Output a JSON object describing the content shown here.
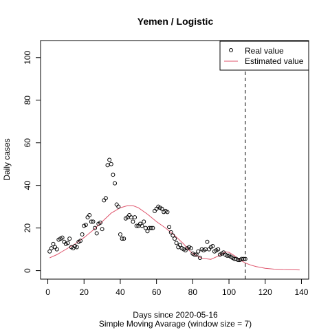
{
  "chart_data": {
    "type": "line",
    "title": "Yemen / Logistic",
    "xlabel": "Days since 2020-05-16",
    "sublabel": "Simple Moving Avarage (window size = 7)",
    "ylabel": "Daily cases",
    "xlim": [
      -4,
      144
    ],
    "ylim": [
      -4,
      108
    ],
    "xticks": [
      0,
      20,
      40,
      60,
      80,
      100,
      120,
      140
    ],
    "yticks": [
      0,
      20,
      40,
      60,
      80,
      100
    ],
    "vline_x": 109,
    "legend": {
      "position": "top-right",
      "entries": [
        "Real value",
        "Estimated value"
      ]
    },
    "series": [
      {
        "name": "Real value",
        "style": "points",
        "color": "#000000",
        "x": [
          1,
          2,
          3,
          4,
          5,
          6,
          7,
          8,
          9,
          10,
          11,
          12,
          13,
          14,
          15,
          16,
          17,
          18,
          19,
          20,
          21,
          22,
          23,
          24,
          25,
          26,
          27,
          28,
          29,
          30,
          31,
          32,
          33,
          34,
          35,
          36,
          37,
          38,
          39,
          40,
          41,
          42,
          43,
          44,
          45,
          46,
          47,
          48,
          49,
          50,
          51,
          52,
          53,
          54,
          55,
          56,
          57,
          58,
          59,
          60,
          61,
          62,
          63,
          64,
          65,
          66,
          67,
          68,
          69,
          70,
          71,
          72,
          73,
          74,
          75,
          76,
          77,
          78,
          79,
          80,
          81,
          82,
          83,
          84,
          85,
          86,
          87,
          88,
          89,
          90,
          91,
          92,
          93,
          94,
          95,
          96,
          97,
          98,
          99,
          100,
          101,
          102,
          103,
          104,
          105,
          106,
          107,
          108,
          109
        ],
        "y": [
          9,
          10.5,
          12.5,
          11,
          10,
          14.5,
          15,
          15.5,
          13.5,
          12.5,
          13,
          15,
          11,
          10.5,
          11.5,
          11,
          13.5,
          14,
          17,
          21,
          21.5,
          25,
          26,
          23,
          23,
          20,
          17.5,
          22,
          22.5,
          19.5,
          33,
          34,
          49.5,
          52,
          50,
          45,
          41,
          31,
          30,
          17,
          15,
          15,
          24.5,
          25,
          26,
          25,
          23,
          25,
          21,
          21,
          22,
          21,
          23,
          20,
          18.5,
          20,
          20,
          20,
          28,
          29,
          30,
          29.5,
          29,
          27.5,
          28,
          27.5,
          20.5,
          18,
          16.5,
          15,
          13,
          11,
          12,
          10.5,
          10,
          9.5,
          10.5,
          11,
          10.5,
          8,
          7.5,
          7.5,
          9,
          6,
          10,
          9.5,
          10,
          13.5,
          10,
          11,
          11.5,
          9,
          9.5,
          10,
          7.5,
          8,
          8.5,
          7.5,
          7,
          7,
          6.5,
          6,
          5.5,
          5.5,
          5,
          5,
          5.5,
          5.5,
          5.5
        ]
      },
      {
        "name": "Estimated value",
        "style": "line",
        "color": "#df536b",
        "x": [
          1,
          5,
          10,
          15,
          20,
          25,
          30,
          35,
          40,
          44,
          47,
          50,
          55,
          60,
          65,
          70,
          75,
          78,
          80,
          85,
          90,
          95,
          98,
          100,
          103,
          106,
          109,
          112,
          115,
          120,
          125,
          130,
          135,
          139
        ],
        "y": [
          6,
          7.5,
          10,
          12.5,
          15.5,
          19,
          23,
          27,
          29.5,
          30.5,
          30.5,
          29.5,
          26.5,
          23,
          20,
          16.5,
          12.5,
          9.5,
          8,
          5.8,
          5.3,
          7.2,
          8.8,
          8.6,
          7,
          5,
          3.6,
          2.6,
          1.9,
          1.1,
          0.7,
          0.5,
          0.4,
          0.3
        ]
      }
    ]
  }
}
